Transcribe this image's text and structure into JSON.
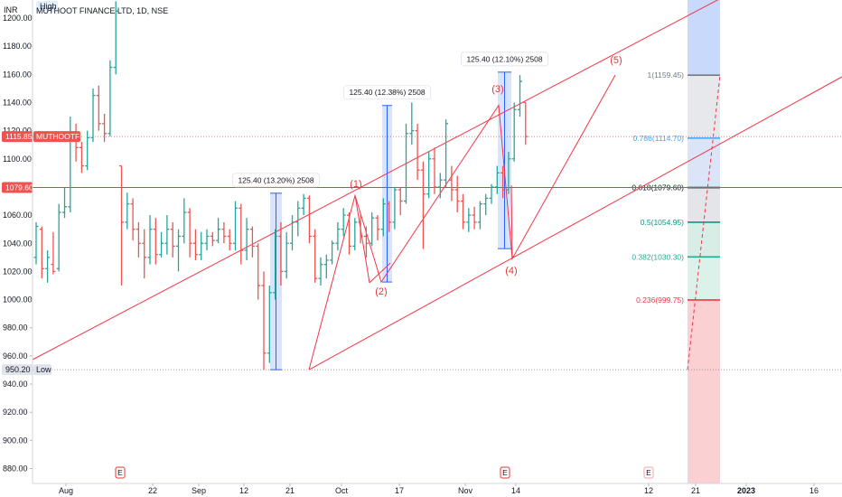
{
  "header": {
    "currency": "INR",
    "title": "MUTHOOT FINANCE LTD, 1D, NSE",
    "high_badge": "High"
  },
  "price_tags": {
    "current": {
      "value": "1115.85",
      "symbol": "MUTHOOTFIN",
      "price": 1115.85,
      "color": "#e53935"
    },
    "level": {
      "value": "1079.60",
      "price": 1079.6,
      "color": "#e53935"
    },
    "low": {
      "value": "950.20",
      "label": "Low",
      "price": 950.2
    }
  },
  "chart_data": {
    "type": "ohlc",
    "ylim": [
      872,
      1212
    ],
    "y_ticks": [
      "1200.00",
      "1180.00",
      "1160.00",
      "1140.00",
      "1120.00",
      "1100.00",
      "1080.00",
      "1060.00",
      "1040.00",
      "1020.00",
      "1000.00",
      "980.00",
      "960.00",
      "940.00",
      "920.00",
      "900.00",
      "880.00"
    ],
    "x_ticks": [
      "Aug",
      "22",
      "Sep",
      "12",
      "21",
      "Oct",
      "17",
      "Nov",
      "14",
      "12",
      "21",
      "2023",
      "16"
    ],
    "colors": {
      "up": "#26a69a",
      "down": "#ef5350",
      "trend": "#f23645"
    },
    "bars": [
      {
        "o": 1030,
        "h": 1055,
        "l": 1025,
        "c": 1052
      },
      {
        "o": 1050,
        "h": 1052,
        "l": 1015,
        "c": 1022
      },
      {
        "o": 1022,
        "h": 1035,
        "l": 1012,
        "c": 1030
      },
      {
        "o": 1025,
        "h": 1048,
        "l": 1018,
        "c": 1020
      },
      {
        "o": 1022,
        "h": 1068,
        "l": 1020,
        "c": 1062
      },
      {
        "o": 1062,
        "h": 1080,
        "l": 1058,
        "c": 1066
      },
      {
        "o": 1066,
        "h": 1130,
        "l": 1062,
        "c": 1118
      },
      {
        "o": 1118,
        "h": 1125,
        "l": 1098,
        "c": 1108
      },
      {
        "o": 1108,
        "h": 1112,
        "l": 1090,
        "c": 1095
      },
      {
        "o": 1095,
        "h": 1120,
        "l": 1092,
        "c": 1115
      },
      {
        "o": 1115,
        "h": 1150,
        "l": 1112,
        "c": 1145
      },
      {
        "o": 1145,
        "h": 1152,
        "l": 1120,
        "c": 1125
      },
      {
        "o": 1125,
        "h": 1132,
        "l": 1112,
        "c": 1118
      },
      {
        "o": 1118,
        "h": 1170,
        "l": 1116,
        "c": 1165
      },
      {
        "o": 1165,
        "h": 1212,
        "l": 1160,
        "c": 1205
      },
      {
        "o": 1095,
        "h": 1095,
        "l": 1010,
        "c": 1055
      },
      {
        "o": 1055,
        "h": 1076,
        "l": 1050,
        "c": 1068
      },
      {
        "o": 1068,
        "h": 1072,
        "l": 1042,
        "c": 1050
      },
      {
        "o": 1050,
        "h": 1055,
        "l": 1030,
        "c": 1040
      },
      {
        "o": 1040,
        "h": 1050,
        "l": 1015,
        "c": 1030
      },
      {
        "o": 1030,
        "h": 1060,
        "l": 1025,
        "c": 1050
      },
      {
        "o": 1050,
        "h": 1058,
        "l": 1025,
        "c": 1032
      },
      {
        "o": 1032,
        "h": 1048,
        "l": 1030,
        "c": 1040
      },
      {
        "o": 1040,
        "h": 1060,
        "l": 1032,
        "c": 1050
      },
      {
        "o": 1050,
        "h": 1055,
        "l": 1030,
        "c": 1038
      },
      {
        "o": 1038,
        "h": 1050,
        "l": 1020,
        "c": 1045
      },
      {
        "o": 1045,
        "h": 1072,
        "l": 1040,
        "c": 1062
      },
      {
        "o": 1062,
        "h": 1065,
        "l": 1030,
        "c": 1040
      },
      {
        "o": 1040,
        "h": 1050,
        "l": 1028,
        "c": 1032
      },
      {
        "o": 1032,
        "h": 1048,
        "l": 1028,
        "c": 1040
      },
      {
        "o": 1040,
        "h": 1050,
        "l": 1035,
        "c": 1045
      },
      {
        "o": 1045,
        "h": 1048,
        "l": 1038,
        "c": 1042
      },
      {
        "o": 1042,
        "h": 1058,
        "l": 1040,
        "c": 1050
      },
      {
        "o": 1050,
        "h": 1055,
        "l": 1040,
        "c": 1045
      },
      {
        "o": 1045,
        "h": 1050,
        "l": 1035,
        "c": 1040
      },
      {
        "o": 1040,
        "h": 1070,
        "l": 1035,
        "c": 1065
      },
      {
        "o": 1065,
        "h": 1068,
        "l": 1025,
        "c": 1035
      },
      {
        "o": 1035,
        "h": 1058,
        "l": 1028,
        "c": 1050
      },
      {
        "o": 1050,
        "h": 1052,
        "l": 1030,
        "c": 1038
      },
      {
        "o": 1038,
        "h": 1040,
        "l": 1000,
        "c": 1010
      },
      {
        "o": 1010,
        "h": 1020,
        "l": 950,
        "c": 962
      },
      {
        "o": 962,
        "h": 1010,
        "l": 955,
        "c": 1005
      },
      {
        "o": 1005,
        "h": 1050,
        "l": 1000,
        "c": 1045
      },
      {
        "o": 1045,
        "h": 1055,
        "l": 1010,
        "c": 1020
      },
      {
        "o": 1020,
        "h": 1048,
        "l": 1015,
        "c": 1040
      },
      {
        "o": 1040,
        "h": 1060,
        "l": 1035,
        "c": 1055
      },
      {
        "o": 1055,
        "h": 1070,
        "l": 1045,
        "c": 1065
      },
      {
        "o": 1065,
        "h": 1075,
        "l": 1060,
        "c": 1072
      },
      {
        "o": 1072,
        "h": 1074,
        "l": 1040,
        "c": 1045
      },
      {
        "o": 1045,
        "h": 1050,
        "l": 1012,
        "c": 1015
      },
      {
        "o": 1015,
        "h": 1030,
        "l": 1010,
        "c": 1025
      },
      {
        "o": 1025,
        "h": 1032,
        "l": 1015,
        "c": 1028
      },
      {
        "o": 1028,
        "h": 1042,
        "l": 1025,
        "c": 1040
      },
      {
        "o": 1040,
        "h": 1055,
        "l": 1035,
        "c": 1050
      },
      {
        "o": 1050,
        "h": 1065,
        "l": 1045,
        "c": 1060
      },
      {
        "o": 1060,
        "h": 1062,
        "l": 1032,
        "c": 1038
      },
      {
        "o": 1038,
        "h": 1058,
        "l": 1035,
        "c": 1055
      },
      {
        "o": 1055,
        "h": 1060,
        "l": 1040,
        "c": 1045
      },
      {
        "o": 1045,
        "h": 1052,
        "l": 1030,
        "c": 1040
      },
      {
        "o": 1040,
        "h": 1062,
        "l": 1038,
        "c": 1058
      },
      {
        "o": 1058,
        "h": 1060,
        "l": 1042,
        "c": 1050
      },
      {
        "o": 1050,
        "h": 1072,
        "l": 1045,
        "c": 1068
      },
      {
        "o": 1068,
        "h": 1070,
        "l": 1048,
        "c": 1055
      },
      {
        "o": 1055,
        "h": 1080,
        "l": 1050,
        "c": 1078
      },
      {
        "o": 1078,
        "h": 1080,
        "l": 1060,
        "c": 1070
      },
      {
        "o": 1070,
        "h": 1125,
        "l": 1068,
        "c": 1118
      },
      {
        "o": 1118,
        "h": 1140,
        "l": 1110,
        "c": 1120
      },
      {
        "o": 1120,
        "h": 1125,
        "l": 1085,
        "c": 1092
      },
      {
        "o": 1092,
        "h": 1098,
        "l": 1036,
        "c": 1075
      },
      {
        "o": 1075,
        "h": 1105,
        "l": 1072,
        "c": 1100
      },
      {
        "o": 1100,
        "h": 1108,
        "l": 1075,
        "c": 1080
      },
      {
        "o": 1080,
        "h": 1090,
        "l": 1072,
        "c": 1085
      },
      {
        "o": 1085,
        "h": 1128,
        "l": 1080,
        "c": 1125
      },
      {
        "o": 1085,
        "h": 1095,
        "l": 1070,
        "c": 1078
      },
      {
        "o": 1078,
        "h": 1088,
        "l": 1062,
        "c": 1070
      },
      {
        "o": 1070,
        "h": 1075,
        "l": 1050,
        "c": 1055
      },
      {
        "o": 1055,
        "h": 1065,
        "l": 1048,
        "c": 1060
      },
      {
        "o": 1060,
        "h": 1066,
        "l": 1050,
        "c": 1055
      },
      {
        "o": 1055,
        "h": 1070,
        "l": 1050,
        "c": 1068
      },
      {
        "o": 1068,
        "h": 1075,
        "l": 1060,
        "c": 1072
      },
      {
        "o": 1072,
        "h": 1082,
        "l": 1068,
        "c": 1080
      },
      {
        "o": 1080,
        "h": 1095,
        "l": 1075,
        "c": 1090
      },
      {
        "o": 1090,
        "h": 1095,
        "l": 1072,
        "c": 1078
      },
      {
        "o": 1078,
        "h": 1105,
        "l": 1075,
        "c": 1100
      },
      {
        "o": 1100,
        "h": 1140,
        "l": 1098,
        "c": 1135
      },
      {
        "o": 1135,
        "h": 1159.45,
        "l": 1130,
        "c": 1155
      },
      {
        "o": 1140,
        "h": 1140,
        "l": 1110,
        "c": 1115.85
      }
    ],
    "measure_boxes": [
      {
        "label": "125.40 (13.20%) 2508",
        "from": 950.2,
        "to": 1075.6
      },
      {
        "label": "125.40 (12.38%) 2508",
        "from": 1012.5,
        "to": 1137.9
      },
      {
        "label": "125.40 (12.10%) 2508",
        "from": 1036.2,
        "to": 1161.6
      }
    ],
    "waves": [
      "(1)",
      "(2)",
      "(3)",
      "(4)",
      "(5)"
    ],
    "fib_levels": [
      {
        "label": "1(1159.45)",
        "value": 1159.45,
        "color": "#787b86",
        "fill": "#e9e9ea"
      },
      {
        "label": "0.786(1114.70)",
        "value": 1114.7,
        "color": "#42a5f5",
        "fill": "#dde6f7"
      },
      {
        "label": "0.618(1079.60)",
        "value": 1079.6,
        "color": "#131722",
        "fill": "#e3e6ea"
      },
      {
        "label": "0.5(1054.95)",
        "value": 1054.95,
        "color": "#089981",
        "fill": "#d7eee8"
      },
      {
        "label": "0.382(1030.30)",
        "value": 1030.3,
        "color": "#22ab94",
        "fill": "#dbf2ec"
      },
      {
        "label": "0.236(999.75)",
        "value": 999.75,
        "color": "#f23645",
        "fill": "#fbe2e3"
      }
    ],
    "earnings_markers": [
      "E",
      "E",
      "E"
    ]
  }
}
